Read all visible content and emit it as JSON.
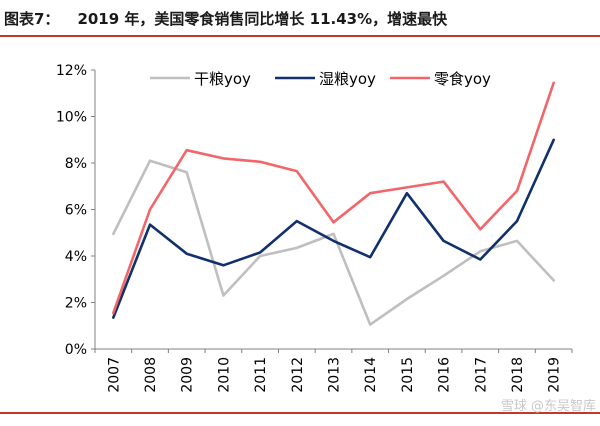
{
  "figure": {
    "label": "图表7：",
    "title": "2019 年，美国零食销售同比增长 11.43%，增速最快"
  },
  "watermark": "雪球 @东吴智库",
  "chart_data": {
    "type": "line",
    "categories": [
      "2007",
      "2008",
      "2009",
      "2010",
      "2011",
      "2012",
      "2013",
      "2014",
      "2015",
      "2016",
      "2017",
      "2018",
      "2019"
    ],
    "y_ticks": [
      "0%",
      "2%",
      "4%",
      "6%",
      "8%",
      "10%",
      "12%"
    ],
    "ylim": [
      0,
      12
    ],
    "grid": false,
    "legend_position": "top",
    "series": [
      {
        "name": "干粮yoy",
        "color": "#bfbfbf",
        "values": [
          4.95,
          8.1,
          7.6,
          2.3,
          4.0,
          4.35,
          4.95,
          1.05,
          2.15,
          3.15,
          4.2,
          4.65,
          2.95
        ]
      },
      {
        "name": "湿粮yoy",
        "color": "#12306b",
        "values": [
          1.35,
          5.35,
          4.1,
          3.6,
          4.15,
          5.5,
          4.65,
          3.95,
          6.7,
          4.65,
          3.85,
          5.5,
          9.0
        ]
      },
      {
        "name": "零食yoy",
        "color": "#f2666a",
        "values": [
          1.55,
          6.0,
          8.55,
          8.2,
          8.05,
          7.65,
          5.45,
          6.7,
          6.95,
          7.2,
          5.15,
          6.8,
          11.45
        ]
      }
    ]
  }
}
